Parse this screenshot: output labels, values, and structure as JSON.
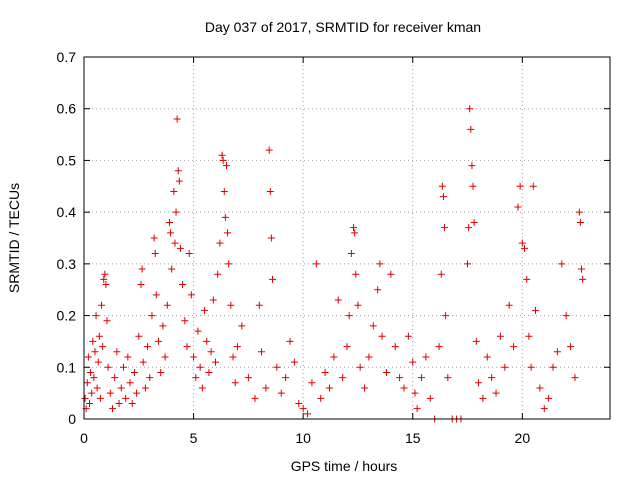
{
  "chart_data": {
    "type": "scatter",
    "title": "Day 037 of 2017, SRMTID for receiver kman",
    "xlabel": "GPS time / hours",
    "ylabel": "SRMTID / TECUs",
    "xlim": [
      0,
      24
    ],
    "ylim": [
      0,
      0.7
    ],
    "xticks": [
      0,
      5,
      10,
      15,
      20
    ],
    "yticks": [
      0,
      0.1,
      0.2,
      0.3,
      0.4,
      0.5,
      0.6,
      0.7
    ],
    "grid": true,
    "marker": "+",
    "color": "#e00000",
    "series": [
      {
        "name": "SRMTID",
        "points": [
          [
            0.05,
            0.04
          ],
          [
            0.1,
            0.02
          ],
          [
            0.15,
            0.07
          ],
          [
            0.2,
            0.12
          ],
          [
            0.25,
            0.03
          ],
          [
            0.3,
            0.09
          ],
          [
            0.35,
            0.05
          ],
          [
            0.4,
            0.15
          ],
          [
            0.45,
            0.08
          ],
          [
            0.5,
            0.13
          ],
          [
            0.55,
            0.2
          ],
          [
            0.6,
            0.06
          ],
          [
            0.65,
            0.11
          ],
          [
            0.7,
            0.16
          ],
          [
            0.75,
            0.04
          ],
          [
            0.8,
            0.22
          ],
          [
            0.85,
            0.14
          ],
          [
            0.9,
            0.27
          ],
          [
            0.95,
            0.28
          ],
          [
            1.0,
            0.26
          ],
          [
            1.05,
            0.19
          ],
          [
            1.1,
            0.1
          ],
          [
            1.2,
            0.05
          ],
          [
            1.3,
            0.02
          ],
          [
            1.4,
            0.08
          ],
          [
            1.5,
            0.13
          ],
          [
            1.6,
            0.03
          ],
          [
            1.7,
            0.06
          ],
          [
            1.8,
            0.1
          ],
          [
            1.9,
            0.04
          ],
          [
            2.0,
            0.12
          ],
          [
            2.1,
            0.07
          ],
          [
            2.2,
            0.03
          ],
          [
            2.3,
            0.09
          ],
          [
            2.4,
            0.05
          ],
          [
            2.5,
            0.16
          ],
          [
            2.6,
            0.26
          ],
          [
            2.65,
            0.29
          ],
          [
            2.7,
            0.11
          ],
          [
            2.8,
            0.06
          ],
          [
            2.9,
            0.14
          ],
          [
            3.0,
            0.08
          ],
          [
            3.1,
            0.2
          ],
          [
            3.2,
            0.35
          ],
          [
            3.25,
            0.32
          ],
          [
            3.3,
            0.24
          ],
          [
            3.4,
            0.15
          ],
          [
            3.5,
            0.09
          ],
          [
            3.6,
            0.18
          ],
          [
            3.7,
            0.12
          ],
          [
            3.8,
            0.22
          ],
          [
            3.9,
            0.38
          ],
          [
            3.95,
            0.36
          ],
          [
            4.0,
            0.29
          ],
          [
            4.1,
            0.44
          ],
          [
            4.15,
            0.34
          ],
          [
            4.2,
            0.4
          ],
          [
            4.25,
            0.58
          ],
          [
            4.3,
            0.48
          ],
          [
            4.35,
            0.46
          ],
          [
            4.4,
            0.33
          ],
          [
            4.5,
            0.26
          ],
          [
            4.6,
            0.19
          ],
          [
            4.7,
            0.14
          ],
          [
            4.8,
            0.32
          ],
          [
            4.9,
            0.24
          ],
          [
            5.0,
            0.12
          ],
          [
            5.1,
            0.08
          ],
          [
            5.2,
            0.17
          ],
          [
            5.3,
            0.1
          ],
          [
            5.4,
            0.06
          ],
          [
            5.5,
            0.21
          ],
          [
            5.6,
            0.15
          ],
          [
            5.7,
            0.09
          ],
          [
            5.8,
            0.13
          ],
          [
            5.9,
            0.23
          ],
          [
            6.0,
            0.11
          ],
          [
            6.1,
            0.28
          ],
          [
            6.2,
            0.34
          ],
          [
            6.3,
            0.51
          ],
          [
            6.35,
            0.5
          ],
          [
            6.4,
            0.44
          ],
          [
            6.45,
            0.39
          ],
          [
            6.5,
            0.49
          ],
          [
            6.55,
            0.36
          ],
          [
            6.6,
            0.3
          ],
          [
            6.7,
            0.22
          ],
          [
            6.8,
            0.12
          ],
          [
            6.9,
            0.07
          ],
          [
            7.0,
            0.14
          ],
          [
            7.2,
            0.18
          ],
          [
            7.5,
            0.08
          ],
          [
            7.8,
            0.04
          ],
          [
            8.0,
            0.22
          ],
          [
            8.1,
            0.13
          ],
          [
            8.3,
            0.06
          ],
          [
            8.45,
            0.52
          ],
          [
            8.5,
            0.44
          ],
          [
            8.55,
            0.35
          ],
          [
            8.6,
            0.27
          ],
          [
            8.8,
            0.1
          ],
          [
            9.0,
            0.05
          ],
          [
            9.2,
            0.08
          ],
          [
            9.4,
            0.15
          ],
          [
            9.6,
            0.11
          ],
          [
            9.8,
            0.03
          ],
          [
            10.0,
            0.02
          ],
          [
            10.2,
            0.01
          ],
          [
            10.4,
            0.07
          ],
          [
            10.6,
            0.3
          ],
          [
            10.8,
            0.04
          ],
          [
            11.0,
            0.09
          ],
          [
            11.2,
            0.06
          ],
          [
            11.4,
            0.12
          ],
          [
            11.6,
            0.23
          ],
          [
            11.8,
            0.08
          ],
          [
            12.0,
            0.14
          ],
          [
            12.1,
            0.2
          ],
          [
            12.2,
            0.32
          ],
          [
            12.3,
            0.37
          ],
          [
            12.35,
            0.36
          ],
          [
            12.4,
            0.28
          ],
          [
            12.5,
            0.22
          ],
          [
            12.6,
            0.1
          ],
          [
            12.8,
            0.06
          ],
          [
            13.0,
            0.12
          ],
          [
            13.2,
            0.18
          ],
          [
            13.4,
            0.25
          ],
          [
            13.5,
            0.3
          ],
          [
            13.6,
            0.16
          ],
          [
            13.8,
            0.09
          ],
          [
            14.0,
            0.28
          ],
          [
            14.2,
            0.14
          ],
          [
            14.4,
            0.08
          ],
          [
            14.6,
            0.06
          ],
          [
            14.8,
            0.16
          ],
          [
            15.0,
            0.11
          ],
          [
            15.1,
            0.05
          ],
          [
            15.2,
            0.02
          ],
          [
            15.4,
            0.08
          ],
          [
            15.6,
            0.12
          ],
          [
            15.8,
            0.04
          ],
          [
            16.0,
            0.0
          ],
          [
            16.2,
            0.14
          ],
          [
            16.3,
            0.28
          ],
          [
            16.35,
            0.45
          ],
          [
            16.4,
            0.43
          ],
          [
            16.45,
            0.37
          ],
          [
            16.5,
            0.2
          ],
          [
            16.6,
            0.08
          ],
          [
            16.8,
            0.0
          ],
          [
            17.0,
            0.0
          ],
          [
            17.2,
            0.0
          ],
          [
            17.5,
            0.3
          ],
          [
            17.55,
            0.37
          ],
          [
            17.6,
            0.6
          ],
          [
            17.65,
            0.56
          ],
          [
            17.7,
            0.49
          ],
          [
            17.75,
            0.45
          ],
          [
            17.8,
            0.38
          ],
          [
            17.9,
            0.15
          ],
          [
            18.0,
            0.07
          ],
          [
            18.2,
            0.04
          ],
          [
            18.4,
            0.12
          ],
          [
            18.6,
            0.08
          ],
          [
            18.8,
            0.05
          ],
          [
            19.0,
            0.16
          ],
          [
            19.2,
            0.1
          ],
          [
            19.4,
            0.22
          ],
          [
            19.6,
            0.14
          ],
          [
            19.8,
            0.41
          ],
          [
            19.9,
            0.45
          ],
          [
            20.0,
            0.34
          ],
          [
            20.1,
            0.33
          ],
          [
            20.2,
            0.27
          ],
          [
            20.3,
            0.16
          ],
          [
            20.4,
            0.1
          ],
          [
            20.5,
            0.45
          ],
          [
            20.6,
            0.21
          ],
          [
            20.8,
            0.06
          ],
          [
            21.0,
            0.02
          ],
          [
            21.2,
            0.04
          ],
          [
            21.4,
            0.1
          ],
          [
            21.6,
            0.13
          ],
          [
            21.8,
            0.3
          ],
          [
            22.0,
            0.2
          ],
          [
            22.2,
            0.14
          ],
          [
            22.4,
            0.08
          ],
          [
            22.6,
            0.4
          ],
          [
            22.65,
            0.38
          ],
          [
            22.7,
            0.29
          ],
          [
            22.75,
            0.27
          ]
        ]
      }
    ]
  }
}
